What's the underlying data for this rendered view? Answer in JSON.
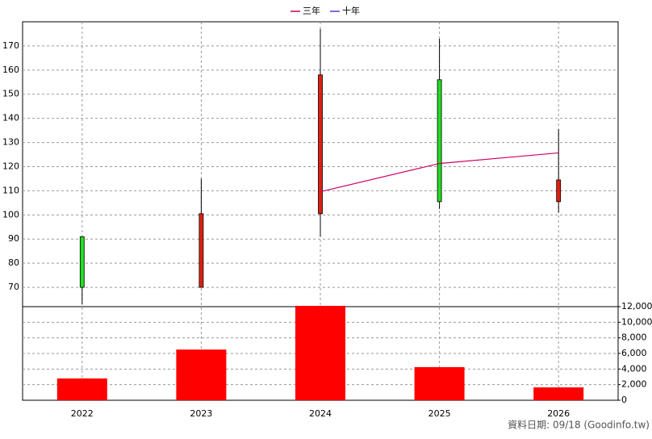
{
  "chart_data": [
    {
      "type": "candlestick",
      "categories": [
        "2022",
        "2023",
        "2024",
        "2025",
        "2026"
      ],
      "open": [
        91,
        70,
        100.5,
        156,
        105.5
      ],
      "close": [
        70,
        100.5,
        158,
        105.5,
        114.5
      ],
      "high": [
        91,
        115,
        177,
        173,
        135.5
      ],
      "low": [
        63,
        70,
        91,
        102.5,
        101
      ],
      "up_color": "#e02010",
      "down_color": "#22dd22",
      "ylim": [
        62,
        180
      ],
      "yticks": [
        70,
        80,
        90,
        100,
        110,
        120,
        130,
        140,
        150,
        160,
        170
      ],
      "grid": true,
      "series": [
        {
          "name": "三年",
          "color": "#cc0066",
          "values": [
            null,
            null,
            109.6,
            121.3,
            125.7
          ]
        },
        {
          "name": "十年",
          "color": "#6633cc",
          "values": [
            null,
            null,
            null,
            null,
            null
          ]
        }
      ]
    },
    {
      "type": "bar",
      "values": [
        2800,
        6500,
        12100,
        4250,
        1650
      ],
      "color": "#ff0000",
      "ylim": [
        0,
        12000
      ],
      "yticks": [
        0,
        {
          "value": 2000,
          "label": "2,000"
        },
        {
          "value": 4000,
          "label": "4,000"
        },
        {
          "value": 6000,
          "label": "6,000"
        },
        {
          "value": 8000,
          "label": "8,000"
        },
        {
          "value": 10000,
          "label": "10,000"
        },
        {
          "value": 12000,
          "label": "12,000"
        }
      ],
      "grid": true
    }
  ],
  "footer": "資料日期: 09/18 (Goodinfo.tw)"
}
